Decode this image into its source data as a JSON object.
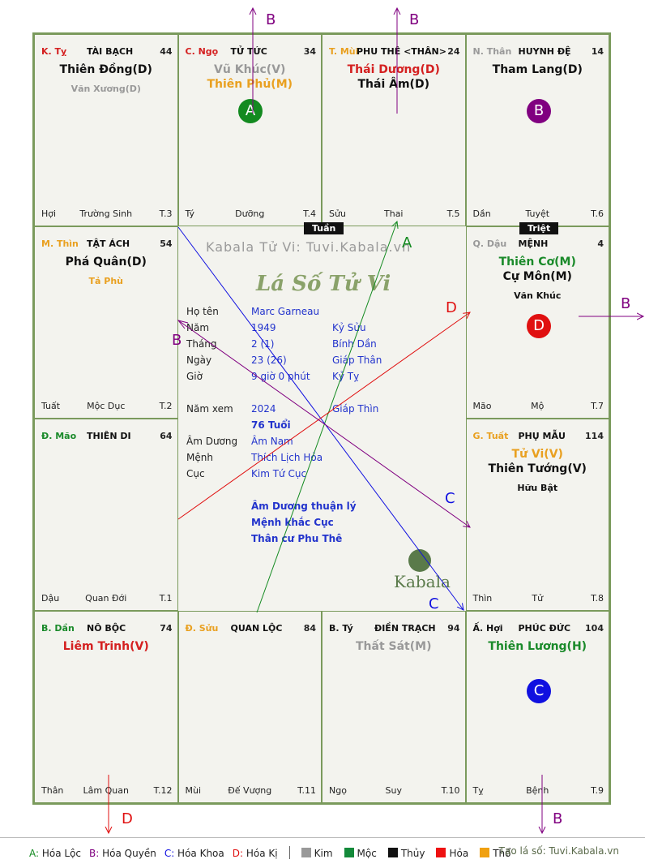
{
  "palaces": [
    {
      "chi": "K. Tỵ",
      "chi_color": "#d42020",
      "name": "TÀI BẠCH",
      "age": "44",
      "stars": [
        {
          "t": "Thiên Đồng(D)",
          "c": "#111"
        }
      ],
      "minor": [
        {
          "t": "Văn Xương(D)",
          "c": "#999"
        }
      ],
      "bl": "Hợi",
      "bm": "Trường Sinh",
      "br": "T.3"
    },
    {
      "chi": "C. Ngọ",
      "chi_color": "#d42020",
      "name": "TỬ TỨC",
      "age": "34",
      "stars": [
        {
          "t": "Vũ Khúc(V)",
          "c": "#999"
        },
        {
          "t": "Thiên Phủ(M)",
          "c": "#e9a020"
        }
      ],
      "minor": [],
      "bl": "Tý",
      "bm": "Dưỡng",
      "br": "T.4"
    },
    {
      "chi": "T. Mùi",
      "chi_color": "#e9a020",
      "name": "PHU THÊ <THÂN>",
      "age": "24",
      "stars": [
        {
          "t": "Thái Dương(D)",
          "c": "#d42020"
        },
        {
          "t": "Thái Âm(D)",
          "c": "#111"
        }
      ],
      "minor": [],
      "bl": "Sửu",
      "bm": "Thai",
      "br": "T.5"
    },
    {
      "chi": "N. Thân",
      "chi_color": "#999",
      "name": "HUYNH ĐỆ",
      "age": "14",
      "stars": [
        {
          "t": "Tham Lang(D)",
          "c": "#111"
        }
      ],
      "minor": [],
      "bl": "Dần",
      "bm": "Tuyệt",
      "br": "T.6"
    },
    {
      "chi": "M. Thìn",
      "chi_color": "#e9a020",
      "name": "TẬT ÁCH",
      "age": "54",
      "stars": [
        {
          "t": "Phá Quân(D)",
          "c": "#111"
        }
      ],
      "minor": [
        {
          "t": "Tả Phù",
          "c": "#e9a020"
        }
      ],
      "bl": "Tuất",
      "bm": "Mộc Dục",
      "br": "T.2"
    },
    {
      "chi": "Q. Dậu",
      "chi_color": "#999",
      "name": "MỆNH",
      "age": "4",
      "stars": [
        {
          "t": "Thiên Cơ(M)",
          "c": "#1a8a2a"
        },
        {
          "t": "Cự Môn(M)",
          "c": "#111"
        }
      ],
      "minor": [
        {
          "t": "Văn Khúc",
          "c": "#111"
        }
      ],
      "bl": "Mão",
      "bm": "Mộ",
      "br": "T.7"
    },
    {
      "chi": "Đ. Mão",
      "chi_color": "#1a8a2a",
      "name": "THIÊN DI",
      "age": "64",
      "stars": [],
      "minor": [],
      "bl": "Dậu",
      "bm": "Quan Đới",
      "br": "T.1"
    },
    {
      "chi": "G. Tuất",
      "chi_color": "#e9a020",
      "name": "PHỤ MẪU",
      "age": "114",
      "stars": [
        {
          "t": "Tử Vi(V)",
          "c": "#e9a020"
        },
        {
          "t": "Thiên Tướng(V)",
          "c": "#111"
        }
      ],
      "minor": [
        {
          "t": "Hữu Bật",
          "c": "#111"
        }
      ],
      "bl": "Thìn",
      "bm": "Tử",
      "br": "T.8"
    },
    {
      "chi": "B. Dần",
      "chi_color": "#1a8a2a",
      "name": "NÔ BỘC",
      "age": "74",
      "stars": [
        {
          "t": "Liêm Trinh(V)",
          "c": "#d42020"
        }
      ],
      "minor": [],
      "bl": "Thân",
      "bm": "Lâm Quan",
      "br": "T.12"
    },
    {
      "chi": "Đ. Sửu",
      "chi_color": "#e9a020",
      "name": "QUAN LỘC",
      "age": "84",
      "stars": [],
      "minor": [],
      "bl": "Mùi",
      "bm": "Đế Vượng",
      "br": "T.11"
    },
    {
      "chi": "B. Tý",
      "chi_color": "#111",
      "name": "ĐIỀN TRẠCH",
      "age": "94",
      "stars": [
        {
          "t": "Thất Sát(M)",
          "c": "#999"
        }
      ],
      "minor": [],
      "bl": "Ngọ",
      "bm": "Suy",
      "br": "T.10"
    },
    {
      "chi": "Ấ. Hợi",
      "chi_color": "#111",
      "name": "PHÚC ĐỨC",
      "age": "104",
      "stars": [
        {
          "t": "Thiên Lương(H)",
          "c": "#1a8a2a"
        }
      ],
      "minor": [],
      "bl": "Tỵ",
      "bm": "Bệnh",
      "br": "T.9"
    }
  ],
  "badges": [
    {
      "letter": "A",
      "color": "#138a20"
    },
    {
      "letter": "B",
      "color": "#800080"
    },
    {
      "letter": "D",
      "color": "#e01010"
    },
    {
      "letter": "C",
      "color": "#1010e0"
    }
  ],
  "tags": {
    "tuan": "Tuần",
    "triet": "Triệt"
  },
  "center": {
    "watermark": "Kabala Tử Vi: Tuvi.Kabala.vn",
    "title": "Lá Số Tử Vi",
    "rows": [
      {
        "label": "Họ tên",
        "value": "Marc Garneau",
        "extra": ""
      },
      {
        "label": "Năm",
        "value": "1949",
        "extra": "Kỷ Sửu"
      },
      {
        "label": "Tháng",
        "value": "2  (1)",
        "extra": "Bính Dần"
      },
      {
        "label": "Ngày",
        "value": "23  (26)",
        "extra": "Giáp Thân"
      },
      {
        "label": "Giờ",
        "value": "9 giờ 0 phút",
        "extra": "Kỷ Tỵ"
      },
      {
        "label": "Năm xem",
        "value": "2024",
        "extra": "Giáp Thìn"
      },
      {
        "label": "",
        "value": "76 Tuổi",
        "extra": ""
      },
      {
        "label": "Âm Dương",
        "value": "Âm Nam",
        "extra": ""
      },
      {
        "label": "Mệnh",
        "value": "Thích Lịch Hỏa",
        "extra": ""
      },
      {
        "label": "Cục",
        "value": "Kim Tứ Cục",
        "extra": ""
      }
    ],
    "notes": [
      "Âm Dương thuận lý",
      "Mệnh khắc Cục",
      "Thân cư Phu Thê"
    ],
    "brand": "Kabala"
  },
  "arrows": {
    "A": "A",
    "B": "B",
    "C": "C",
    "D": "D"
  },
  "legend": {
    "hoa": [
      {
        "key": "A:",
        "text": " Hóa Lộc",
        "color": "#138a20"
      },
      {
        "key": "B:",
        "text": " Hóa Quyền",
        "color": "#800080"
      },
      {
        "key": "C:",
        "text": " Hóa Khoa",
        "color": "#1010e0"
      },
      {
        "key": "D:",
        "text": " Hóa Kị",
        "color": "#e01010"
      }
    ],
    "elements": [
      {
        "name": "Kim",
        "color": "#999999"
      },
      {
        "name": "Mộc",
        "color": "#138a3a"
      },
      {
        "name": "Thủy",
        "color": "#111111"
      },
      {
        "name": "Hỏa",
        "color": "#ee1111"
      },
      {
        "name": "Thổ",
        "color": "#f0a010"
      }
    ],
    "credit": "Tạo lá số: Tuvi.Kabala.vn"
  }
}
